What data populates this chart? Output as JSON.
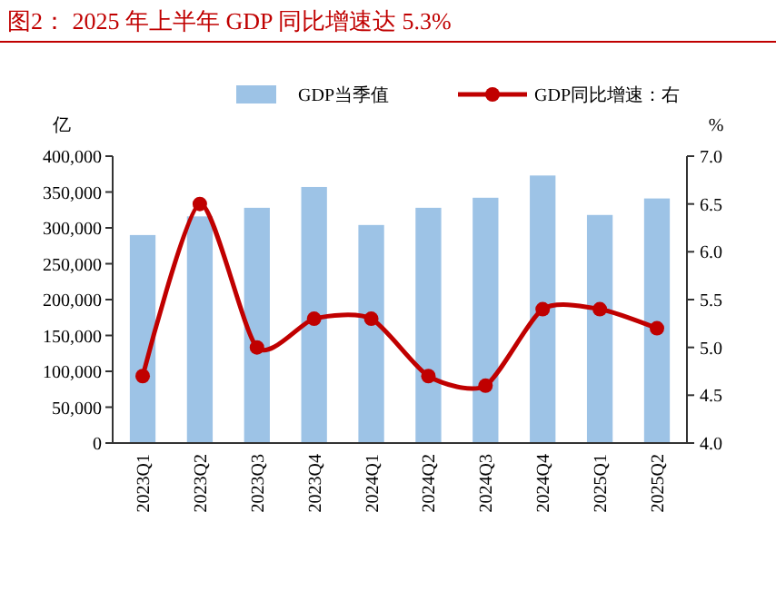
{
  "chart_data": {
    "type": "bar",
    "title": "图2： 2025 年上半年 GDP 同比增速达 5.3%",
    "ylabel": "亿",
    "y2label": "%",
    "categories": [
      "2023Q1",
      "2023Q2",
      "2023Q3",
      "2023Q4",
      "2024Q1",
      "2024Q2",
      "2024Q3",
      "2024Q4",
      "2025Q1",
      "2025Q2"
    ],
    "series": [
      {
        "name": "GDP当季值",
        "color": "#9dc3e6",
        "values": [
          290000,
          316000,
          328000,
          357000,
          304000,
          328000,
          342000,
          373000,
          318000,
          341000
        ]
      },
      {
        "name": "GDP同比增速：右",
        "type": "line",
        "axis": "y2",
        "color": "#c00000",
        "values": [
          4.7,
          6.5,
          5.0,
          5.3,
          5.3,
          4.7,
          4.6,
          5.4,
          5.4,
          5.2
        ]
      }
    ],
    "ylim": [
      0,
      400000
    ],
    "yticks": [
      {
        "value": 0,
        "label": "0"
      },
      {
        "value": 50000,
        "label": "50,000"
      },
      {
        "value": 100000,
        "label": "100,000"
      },
      {
        "value": 150000,
        "label": "150,000"
      },
      {
        "value": 200000,
        "label": "200,000"
      },
      {
        "value": 250000,
        "label": "250,000"
      },
      {
        "value": 300000,
        "label": "300,000"
      },
      {
        "value": 350000,
        "label": "350,000"
      },
      {
        "value": 400000,
        "label": "400,000"
      }
    ],
    "y2lim": [
      4.0,
      7.0
    ],
    "y2ticks": [
      {
        "value": 4,
        "label": "4.0"
      },
      {
        "value": 4.5,
        "label": "4.5"
      },
      {
        "value": 5,
        "label": "5.0"
      },
      {
        "value": 5.5,
        "label": "5.5"
      },
      {
        "value": 6,
        "label": "6.0"
      },
      {
        "value": 6.5,
        "label": "6.5"
      },
      {
        "value": 7,
        "label": "7.0"
      }
    ],
    "legend": "top",
    "marker": "circle",
    "grid": false
  }
}
